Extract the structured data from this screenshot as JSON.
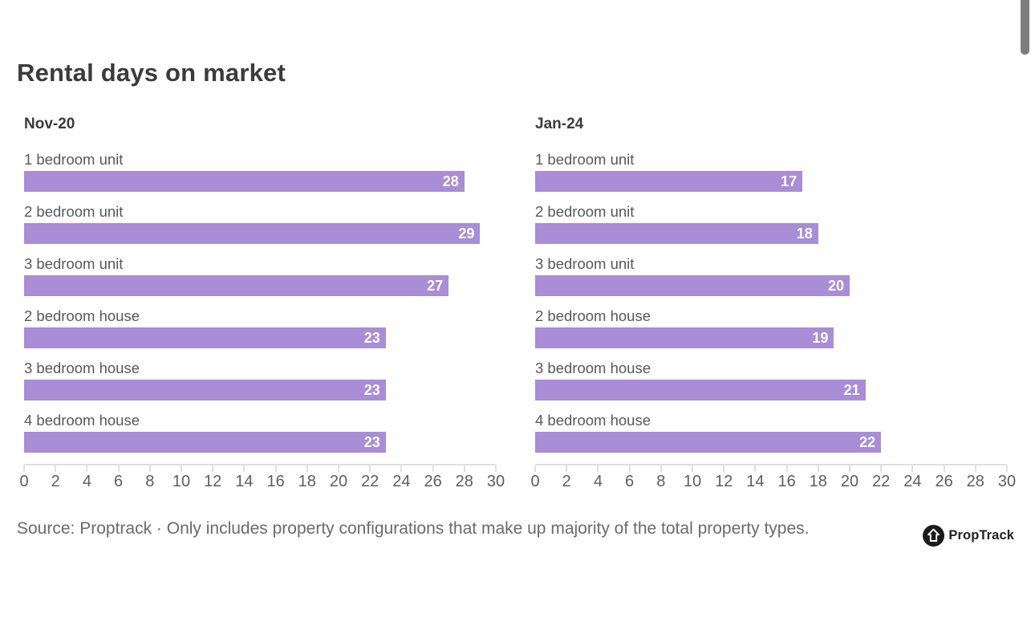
{
  "page_title": "Rental days on market",
  "scrollbar": {
    "visible": true,
    "color": "#7d7d7d"
  },
  "chart_data": {
    "type": "bar",
    "orientation": "horizontal",
    "title": "Rental days on market",
    "categories": [
      "1 bedroom unit",
      "2 bedroom unit",
      "3 bedroom unit",
      "2 bedroom house",
      "3 bedroom house",
      "4 bedroom house"
    ],
    "series": [
      {
        "name": "Nov-20",
        "values": [
          28,
          29,
          27,
          23,
          23,
          23
        ]
      },
      {
        "name": "Jan-24",
        "values": [
          17,
          18,
          20,
          19,
          21,
          22
        ]
      }
    ],
    "xlim": [
      0,
      30
    ],
    "x_ticks": [
      0,
      2,
      4,
      6,
      8,
      10,
      12,
      14,
      16,
      18,
      20,
      22,
      24,
      26,
      28,
      30
    ],
    "grid": false,
    "legend_position": "panel-headers",
    "bar_color": "#a98dd6",
    "value_label_color": "#ffffff"
  },
  "footer": {
    "source_text": "Source: Proptrack · Only includes property configurations that make up majority of the total property types.",
    "logo_text": "PropTrack"
  }
}
